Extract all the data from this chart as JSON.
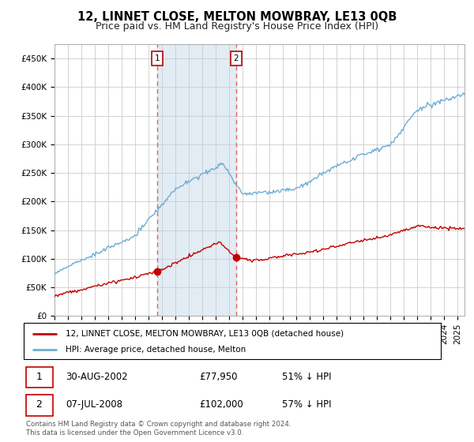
{
  "title": "12, LINNET CLOSE, MELTON MOWBRAY, LE13 0QB",
  "subtitle": "Price paid vs. HM Land Registry's House Price Index (HPI)",
  "xlim_start": 1995.0,
  "xlim_end": 2025.5,
  "ylim": [
    0,
    475000
  ],
  "yticks": [
    0,
    50000,
    100000,
    150000,
    200000,
    250000,
    300000,
    350000,
    400000,
    450000
  ],
  "ytick_labels": [
    "£0",
    "£50K",
    "£100K",
    "£150K",
    "£200K",
    "£250K",
    "£300K",
    "£350K",
    "£400K",
    "£450K"
  ],
  "sale1_date": 2002.66,
  "sale1_price": 77950,
  "sale2_date": 2008.51,
  "sale2_price": 102000,
  "hpi_color": "#6baed6",
  "price_color": "#c00000",
  "shade_color": "#d6e4f0",
  "dashed_color": "#e06060",
  "legend_label_price": "12, LINNET CLOSE, MELTON MOWBRAY, LE13 0QB (detached house)",
  "legend_label_hpi": "HPI: Average price, detached house, Melton",
  "table_row1": [
    "1",
    "30-AUG-2002",
    "£77,950",
    "51% ↓ HPI"
  ],
  "table_row2": [
    "2",
    "07-JUL-2008",
    "£102,000",
    "57% ↓ HPI"
  ],
  "footer": "Contains HM Land Registry data © Crown copyright and database right 2024.\nThis data is licensed under the Open Government Licence v3.0.",
  "bg_color": "#ffffff",
  "grid_color": "#cccccc",
  "title_fontsize": 10.5,
  "subtitle_fontsize": 9,
  "tick_fontsize": 7.5,
  "label_box_color": "#c00000"
}
